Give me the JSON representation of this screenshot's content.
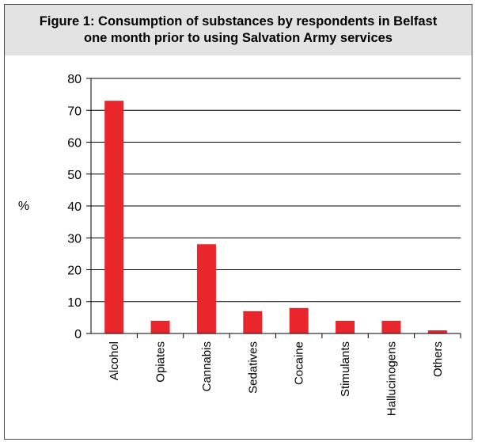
{
  "chart_data": {
    "type": "bar",
    "title_line1": "Figure 1: Consumption of substances by respondents in Belfast",
    "title_line2": "one month prior to using Salvation Army services",
    "ylabel": "%",
    "xlabel": "",
    "ylim": [
      0,
      80
    ],
    "yticks": [
      0,
      10,
      20,
      30,
      40,
      50,
      60,
      70,
      80
    ],
    "grid": true,
    "categories": [
      "Alcohol",
      "Opiates",
      "Cannabis",
      "Sedatives",
      "Cocaine",
      "Stimulants",
      "Hallucinogens",
      "Others"
    ],
    "values": [
      73,
      4,
      28,
      7,
      8,
      4,
      4,
      1
    ],
    "bar_color": "#e8262b",
    "header_background": "#e3e3e3"
  }
}
